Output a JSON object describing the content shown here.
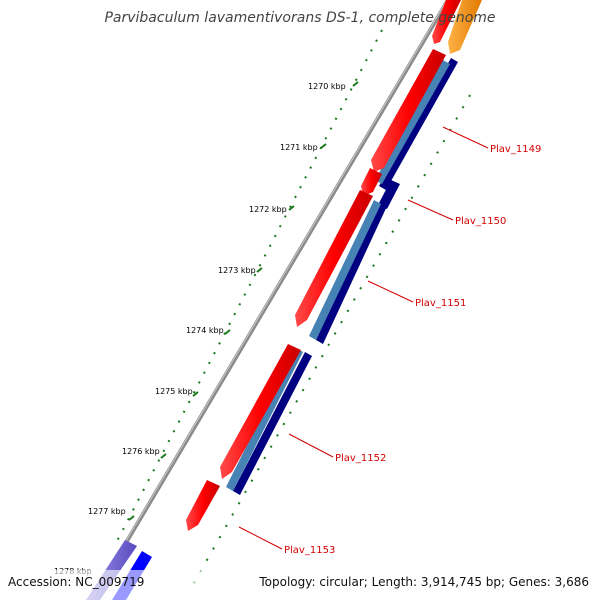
{
  "title": "Parvibaculum lavamentivorans DS-1, complete genome",
  "footer": {
    "accession": "Accession: NC_009719",
    "topology": "Topology: circular; Length: 3,914,745 bp; Genes: 3,686"
  },
  "colors": {
    "backbone": "#8a8a8a",
    "cds_forward": "#ff0000",
    "cds_top_orange": "#ff8c00",
    "feature_steelblue": "#4682b4",
    "feature_navy": "#000080",
    "ticks": "#1a7a1a",
    "label_text": "#d40000",
    "cds_reverse_blue": "#0000ff",
    "cds_reverse_violet": "#6a5acd"
  },
  "kbp_labels": [
    "1270 kbp",
    "1271 kbp",
    "1272 kbp",
    "1273 kbp",
    "1274 kbp",
    "1275 kbp",
    "1276 kbp",
    "1277 kbp",
    "1278 kbp"
  ],
  "genes": [
    {
      "id": "Plav_1149"
    },
    {
      "id": "Plav_1150"
    },
    {
      "id": "Plav_1151"
    },
    {
      "id": "Plav_1152"
    },
    {
      "id": "Plav_1153"
    }
  ]
}
